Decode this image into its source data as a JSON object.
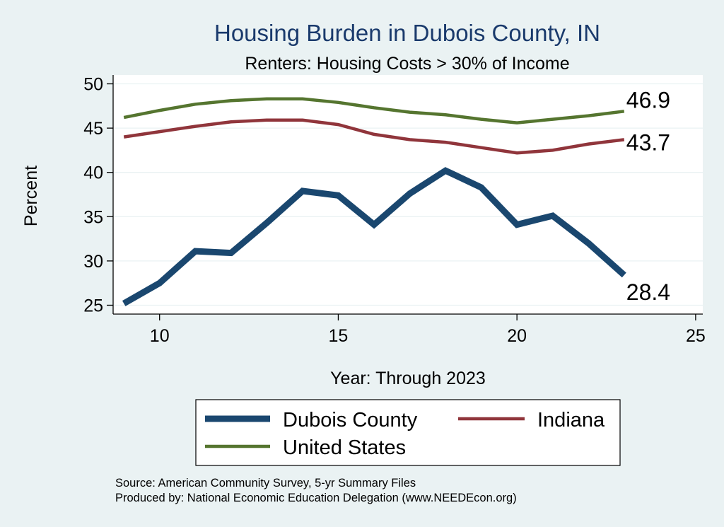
{
  "chart_data": {
    "type": "line",
    "title": "Housing Burden in Dubois County, IN",
    "subtitle": "Renters: Housing Costs > 30% of Income",
    "xlabel": "Year: Through 2023",
    "ylabel": "Percent",
    "xlim": [
      8.7,
      25.2
    ],
    "ylim": [
      24,
      51
    ],
    "xticks": [
      10,
      15,
      20,
      25
    ],
    "yticks": [
      25,
      30,
      35,
      40,
      45,
      50
    ],
    "grid": "horizontal",
    "legend_position": "bottom",
    "x": [
      9,
      10,
      11,
      12,
      13,
      14,
      15,
      16,
      17,
      18,
      19,
      20,
      21,
      22,
      23
    ],
    "series": [
      {
        "name": "Dubois County",
        "color": "#1a476f",
        "width": 9,
        "values": [
          25.2,
          27.5,
          31.1,
          30.9,
          34.3,
          37.9,
          37.4,
          34.1,
          37.6,
          40.2,
          38.3,
          34.1,
          35.1,
          32.0,
          28.4
        ],
        "end_label": "28.4"
      },
      {
        "name": "Indiana",
        "color": "#90353b",
        "width": 4.5,
        "values": [
          44.0,
          44.6,
          45.2,
          45.7,
          45.9,
          45.9,
          45.4,
          44.3,
          43.7,
          43.4,
          42.8,
          42.2,
          42.5,
          43.2,
          43.7
        ],
        "end_label": "43.7"
      },
      {
        "name": "United States",
        "color": "#55752f",
        "width": 4.5,
        "values": [
          46.2,
          47.0,
          47.7,
          48.1,
          48.3,
          48.3,
          47.9,
          47.3,
          46.8,
          46.5,
          46.0,
          45.6,
          46.0,
          46.4,
          46.9
        ],
        "end_label": "46.9"
      }
    ],
    "notes": [
      "Source: American Community Survey, 5-yr Summary Files",
      "Produced by: National Economic Education Delegation (www.NEEDEcon.org)"
    ]
  }
}
